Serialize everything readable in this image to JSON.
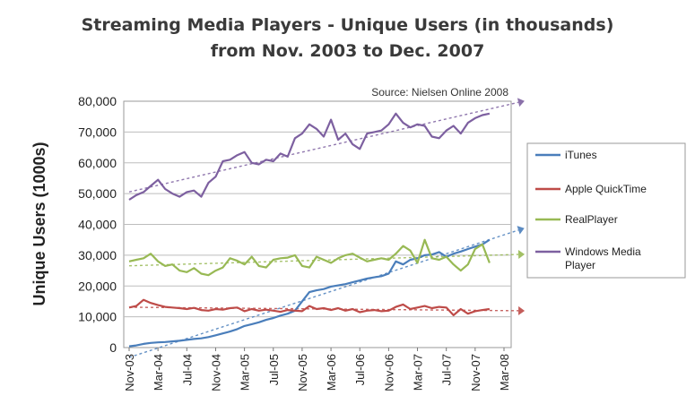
{
  "chart_data": {
    "type": "line",
    "title": "Streaming Media Players - Unique Users (in thousands)",
    "subtitle": "from Nov. 2003 to Dec. 2007",
    "source": "Source: Nielsen Online 2008",
    "ylabel": "Unique Users (1000s)",
    "xlabel": "",
    "ylim": [
      0,
      80000
    ],
    "yticks": [
      "0",
      "10,000",
      "20,000",
      "30,000",
      "40,000",
      "50,000",
      "60,000",
      "70,000",
      "80,000"
    ],
    "x_tick_labels": [
      "Nov-03",
      "Mar-04",
      "Jul-04",
      "Nov-04",
      "Mar-05",
      "Jul-05",
      "Nov-05",
      "Mar-06",
      "Jul-06",
      "Nov-06",
      "Mar-07",
      "Jul-07",
      "Nov-07",
      "Mar-08"
    ],
    "x_start": "Nov-03",
    "x_end": "Mar-08",
    "grid": true,
    "legend_position": "right",
    "trendlines": true,
    "series": [
      {
        "name": "iTunes",
        "color": "#4a7ebb",
        "values": [
          400,
          700,
          1200,
          1500,
          1700,
          1800,
          2000,
          2200,
          2500,
          2800,
          3000,
          3400,
          4000,
          4600,
          5200,
          6000,
          7000,
          7600,
          8200,
          9000,
          9600,
          10400,
          11000,
          12000,
          15000,
          18000,
          18600,
          19000,
          19800,
          20200,
          20600,
          21200,
          21800,
          22400,
          22800,
          23200,
          24000,
          28000,
          27000,
          28500,
          29000,
          30000,
          30200,
          31000,
          29500,
          30500,
          31200,
          32000,
          32800,
          33500,
          35000
        ]
      },
      {
        "name": "Apple QuickTime",
        "color": "#be4b48",
        "values": [
          13000,
          13500,
          15500,
          14500,
          13800,
          13200,
          13000,
          12800,
          12500,
          12900,
          12200,
          12000,
          12500,
          12300,
          12800,
          13000,
          11800,
          12500,
          12000,
          12300,
          12000,
          11600,
          12200,
          12000,
          11800,
          13500,
          12500,
          12800,
          12200,
          12800,
          12000,
          12500,
          11500,
          12000,
          12200,
          11800,
          12000,
          13200,
          14000,
          12500,
          13000,
          13500,
          12800,
          13200,
          13000,
          10500,
          12500,
          11000,
          11800,
          12200,
          12500
        ]
      },
      {
        "name": "RealPlayer",
        "color": "#98b954",
        "values": [
          28000,
          28500,
          29000,
          30500,
          28000,
          26500,
          27000,
          25000,
          24500,
          25800,
          24000,
          23500,
          25000,
          26000,
          29000,
          28200,
          27000,
          29500,
          26500,
          26000,
          28500,
          29000,
          29200,
          30000,
          26500,
          26000,
          29500,
          28500,
          27500,
          29000,
          30000,
          30500,
          29200,
          28000,
          28500,
          29000,
          28500,
          30500,
          33000,
          31500,
          27500,
          35000,
          29000,
          28500,
          29500,
          27000,
          25000,
          27000,
          32000,
          33500,
          27500
        ]
      },
      {
        "name": "Windows Media Player",
        "color": "#7d60a0",
        "values": [
          48000,
          49500,
          50500,
          52500,
          54500,
          51500,
          50000,
          49000,
          50500,
          51000,
          49000,
          53500,
          55500,
          60500,
          61000,
          62500,
          63500,
          60000,
          59500,
          61000,
          60500,
          63000,
          62000,
          68000,
          69500,
          72500,
          71000,
          68500,
          74000,
          67500,
          69500,
          66000,
          64500,
          69500,
          70000,
          70500,
          72500,
          76000,
          73000,
          71500,
          72500,
          72000,
          68500,
          68000,
          70500,
          72000,
          69500,
          73000,
          74500,
          75500,
          76000
        ]
      }
    ]
  }
}
